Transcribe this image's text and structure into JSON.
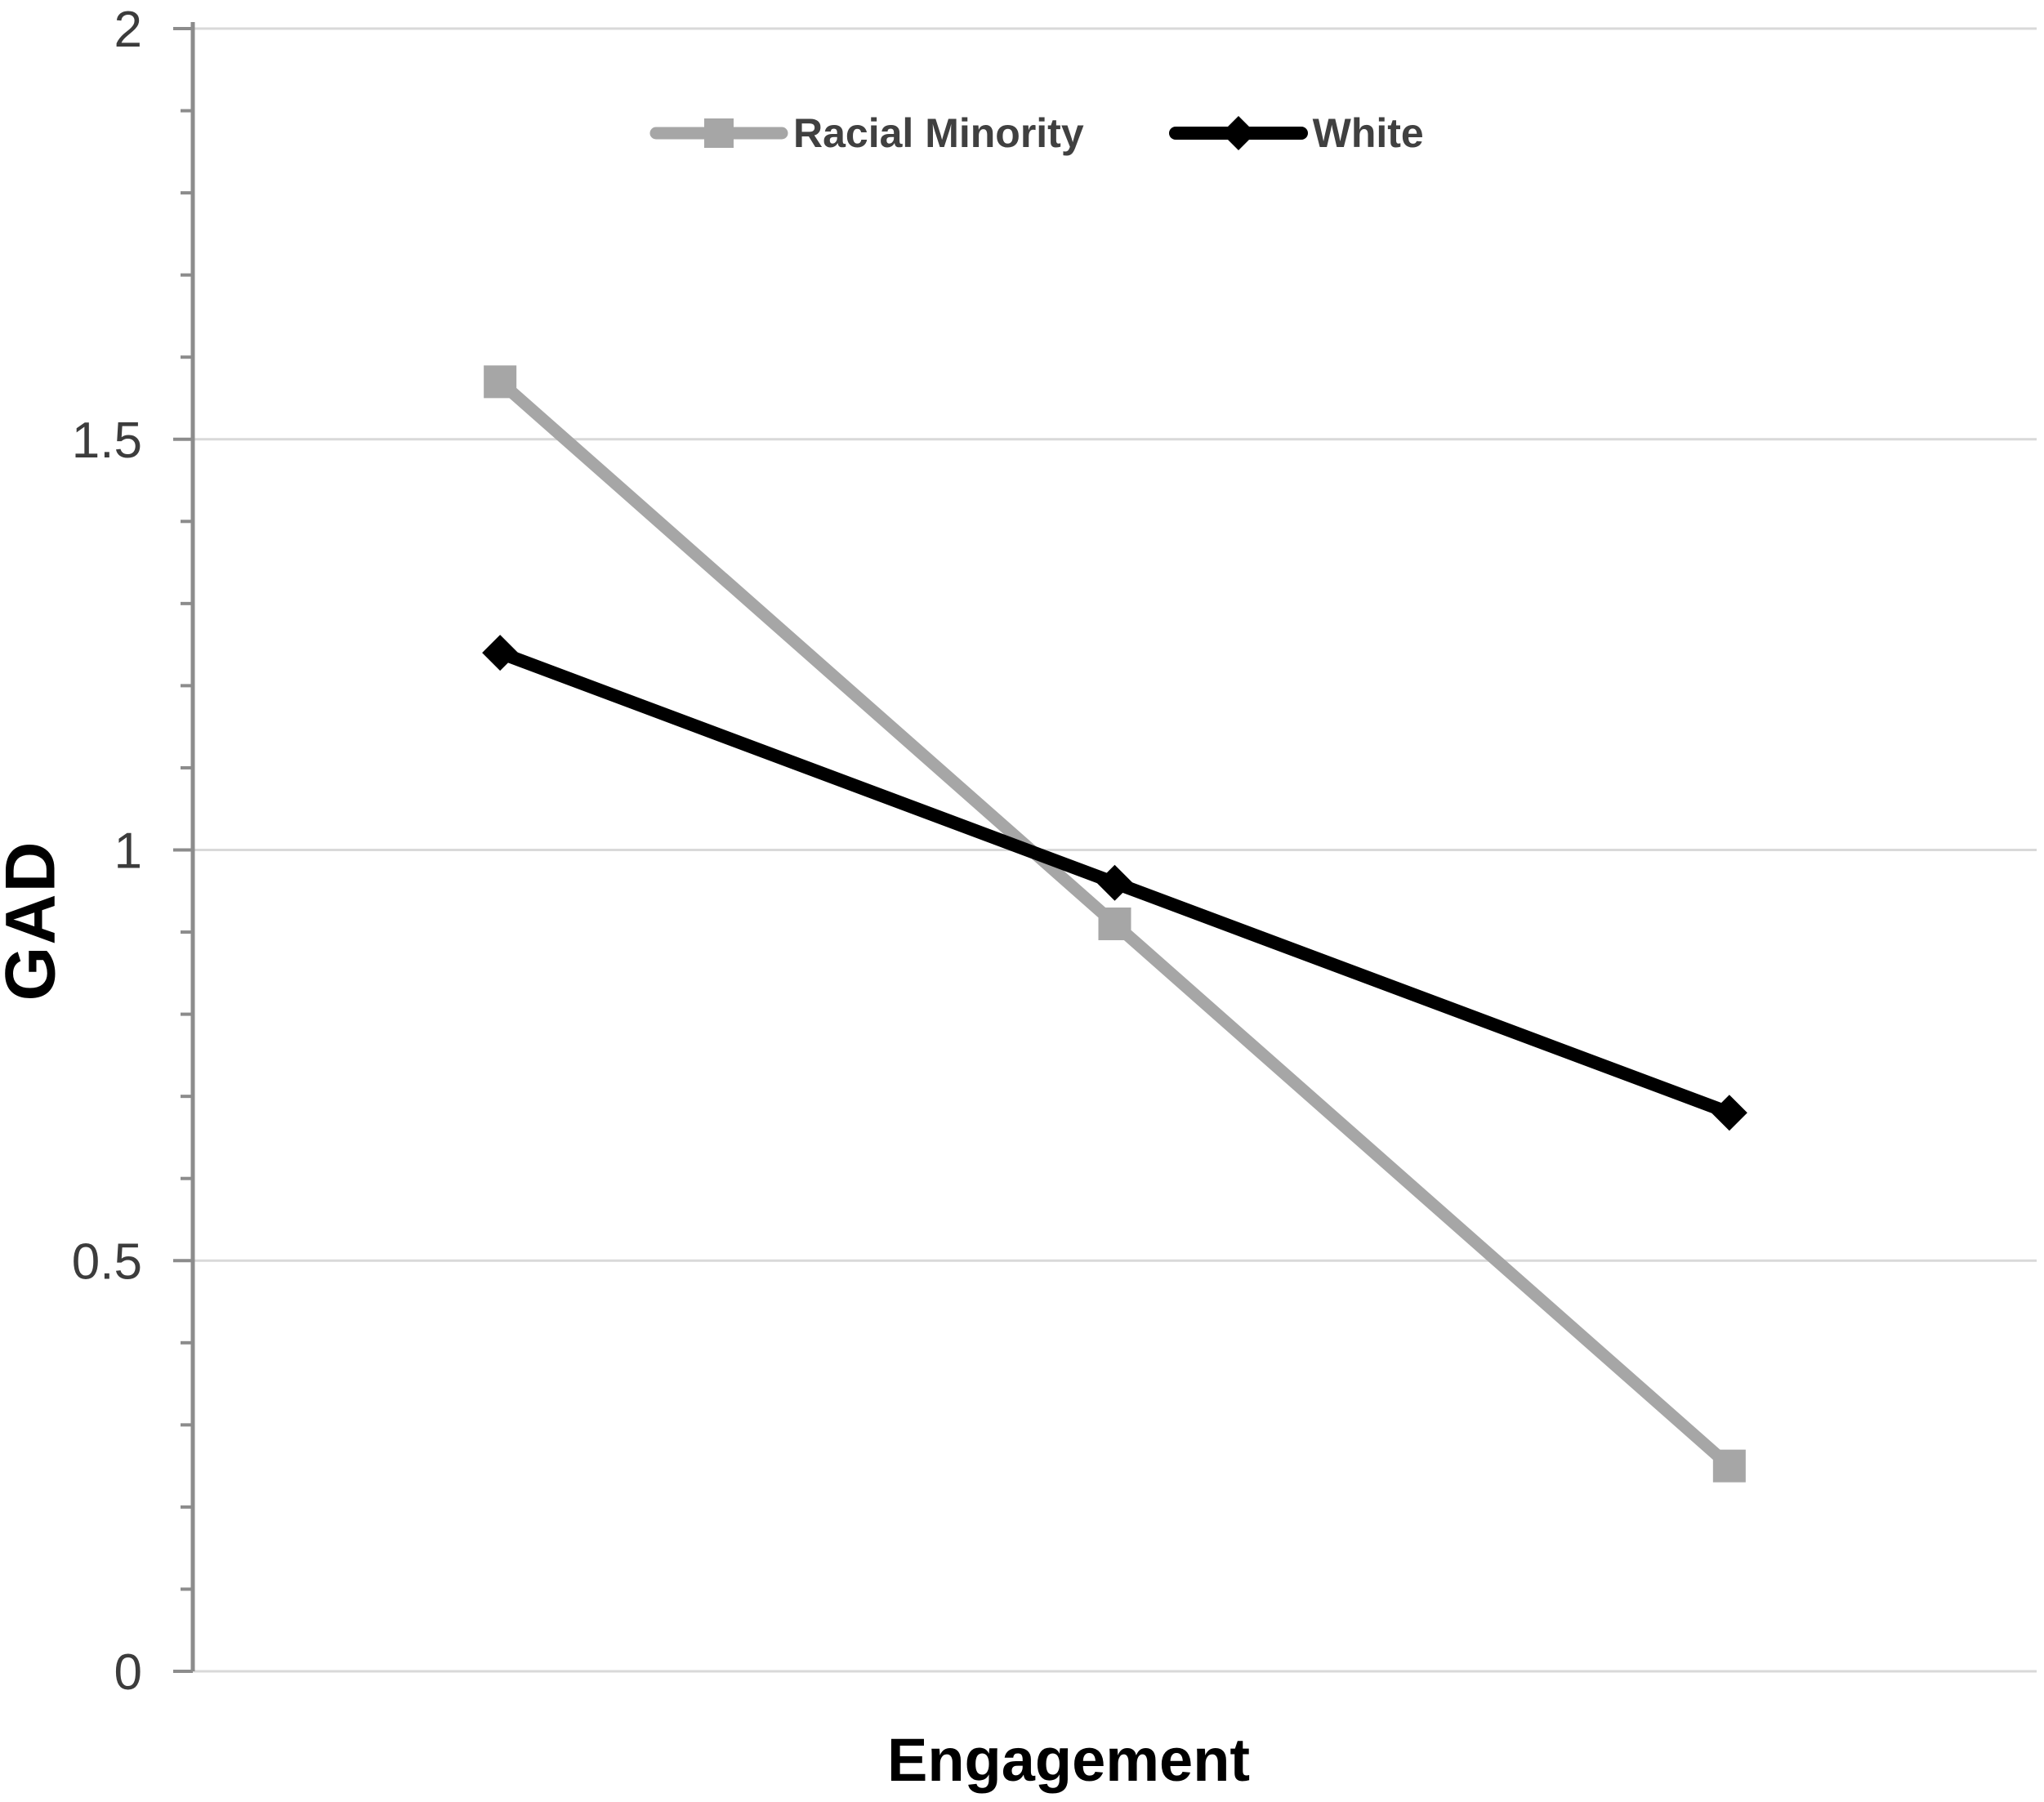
{
  "chart_data": {
    "type": "line",
    "title": "",
    "xlabel": "Engagement",
    "ylabel": "GAD",
    "ylim": [
      0,
      2
    ],
    "y_ticks": [
      0,
      0.5,
      1,
      1.5,
      2
    ],
    "y_tick_labels": [
      "0",
      "0.5",
      "1",
      "1.5",
      "2"
    ],
    "y_minor_tick_step": 0.1,
    "x_tick_labels_visible": false,
    "grid": "horizontal-major-gridlines",
    "legend_position": "top-center",
    "series": [
      {
        "name": "Racial Minority",
        "marker": "square",
        "color": "#A6A6A6",
        "values": [
          1.57,
          0.91,
          0.25
        ]
      },
      {
        "name": "White",
        "marker": "diamond",
        "color": "#000000",
        "values": [
          1.24,
          0.96,
          0.68
        ]
      }
    ],
    "colors": {
      "background": "#FFFFFF",
      "gridline": "#D9D9D9",
      "axis_line": "#8C8C8C",
      "tick_label": "#3C3C3C",
      "axis_title": "#000000",
      "legend_text": "#404040"
    }
  }
}
